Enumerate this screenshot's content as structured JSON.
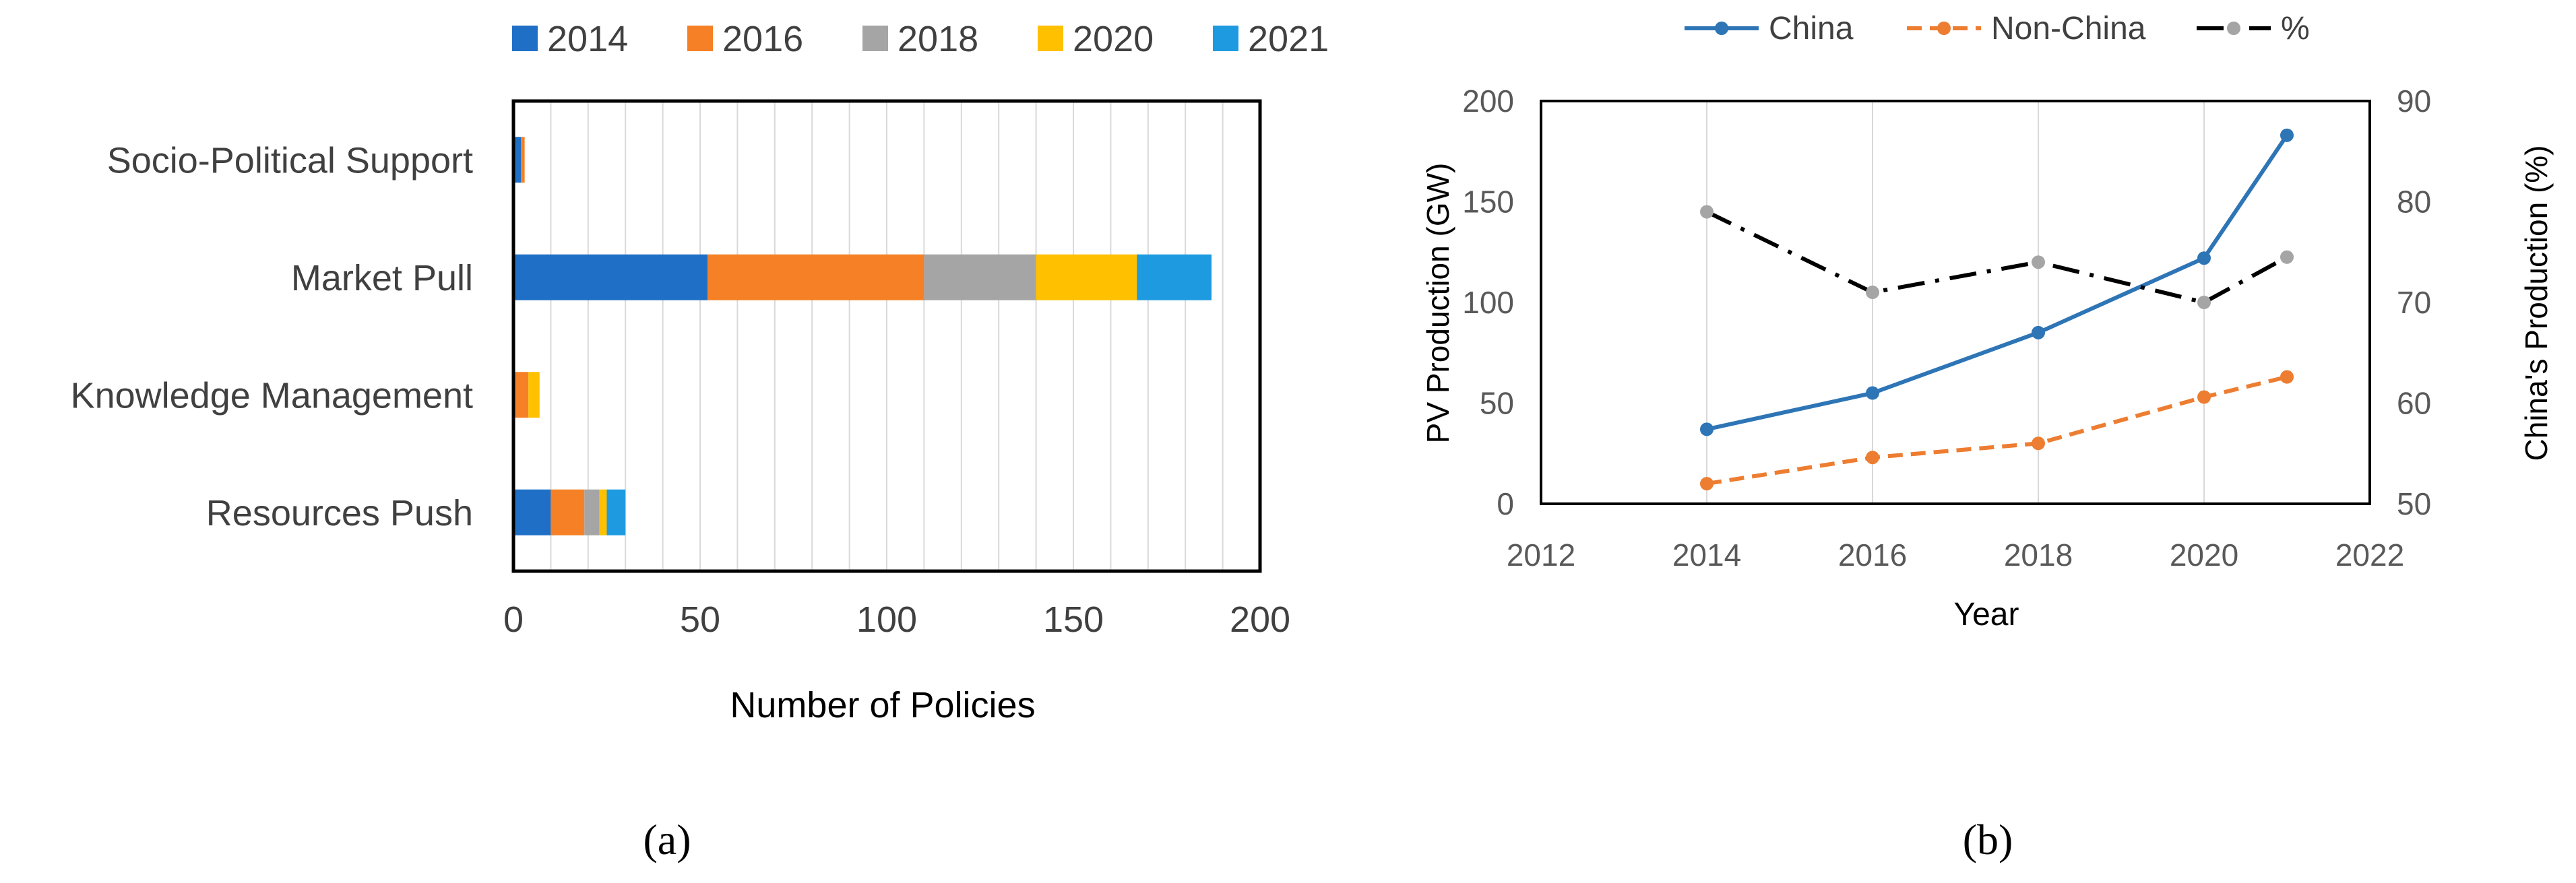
{
  "chart_data": [
    {
      "type": "bar",
      "stacked": true,
      "orientation": "horizontal",
      "categories": [
        "Socio-Political Support",
        "Market Pull",
        "Knowledge Management",
        "Resources Push"
      ],
      "series": [
        {
          "name": "2014",
          "color": "#1f6fc6",
          "values": [
            2,
            52,
            0,
            10
          ]
        },
        {
          "name": "2016",
          "color": "#f58025",
          "values": [
            1,
            58,
            4,
            9
          ]
        },
        {
          "name": "2018",
          "color": "#a5a5a5",
          "values": [
            0,
            30,
            0,
            4
          ]
        },
        {
          "name": "2020",
          "color": "#ffc000",
          "values": [
            0,
            27,
            3,
            2
          ]
        },
        {
          "name": "2021",
          "color": "#1e9be0",
          "values": [
            0,
            20,
            0,
            5
          ]
        }
      ],
      "xlabel": "Number of Policies",
      "xlim": [
        0,
        200
      ],
      "xticks": [
        "0",
        "50",
        "100",
        "150",
        "200"
      ],
      "grid": true,
      "legend": "top",
      "panel_label": "(a)"
    },
    {
      "type": "line",
      "x": [
        2014,
        2016,
        2018,
        2020,
        2021
      ],
      "series": [
        {
          "name": "China",
          "color": "#2e75b6",
          "axis": "left",
          "style": "solid",
          "values": [
            37,
            55,
            85,
            122,
            183
          ]
        },
        {
          "name": "Non-China",
          "color": "#ed7d31",
          "axis": "left",
          "style": "dashed",
          "values": [
            10,
            23,
            30,
            53,
            63
          ]
        },
        {
          "name": "%",
          "color": "#000000",
          "marker_color": "#a5a5a5",
          "axis": "right",
          "style": "dashdot",
          "values": [
            79,
            71,
            74,
            70,
            74.5
          ]
        }
      ],
      "xlabel": "Year",
      "ylabel": "PV Production (GW)",
      "y2label": "China's Production (%)",
      "xlim": [
        2012,
        2022
      ],
      "ylim": [
        0,
        200
      ],
      "y2lim": [
        50,
        90
      ],
      "xticks": [
        "2012",
        "2014",
        "2016",
        "2018",
        "2020",
        "2022"
      ],
      "yticks": [
        "0",
        "50",
        "100",
        "150",
        "200"
      ],
      "y2ticks": [
        "50",
        "60",
        "70",
        "80",
        "90"
      ],
      "grid": true,
      "legend": "top",
      "panel_label": "(b)"
    }
  ]
}
